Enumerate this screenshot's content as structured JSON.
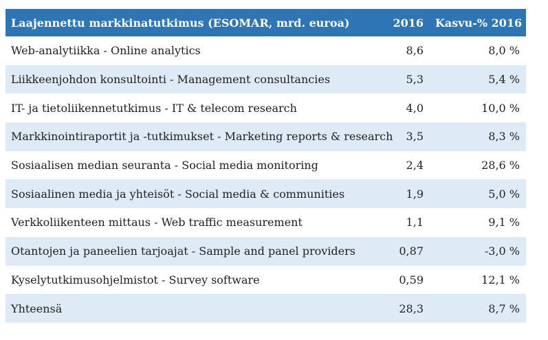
{
  "colors": {
    "header_bg": "#2E75B6",
    "header_text": "#FFFFFF",
    "row_alt_bg": "#DEEAF6",
    "row_bg": "#FFFFFF",
    "body_text": "#212121"
  },
  "chart_data": {
    "type": "table",
    "title": "Laajennettu markkinatutkimus (ESOMAR, mrd. euroa)",
    "columns": [
      "Laajennettu markkinatutkimus (ESOMAR, mrd. euroa)",
      "2016",
      "Kasvu-% 2016"
    ],
    "units": "mrd. euroa",
    "rows": [
      {
        "label": "Web-analytiikka - Online analytics",
        "value_2016": "8,6",
        "growth_2016": "8,0 %",
        "value_num": 8.6,
        "growth_num": 8.0
      },
      {
        "label": "Liikkeenjohdon konsultointi - Management consultancies",
        "value_2016": "5,3",
        "growth_2016": "5,4 %",
        "value_num": 5.3,
        "growth_num": 5.4
      },
      {
        "label": "IT- ja tietoliikennetutkimus - IT & telecom research",
        "value_2016": "4,0",
        "growth_2016": "10,0 %",
        "value_num": 4.0,
        "growth_num": 10.0
      },
      {
        "label": "Markkinointiraportit ja -tutkimukset - Marketing reports & research",
        "value_2016": "3,5",
        "growth_2016": "8,3 %",
        "value_num": 3.5,
        "growth_num": 8.3
      },
      {
        "label": "Sosiaalisen median seuranta - Social media monitoring",
        "value_2016": "2,4",
        "growth_2016": "28,6 %",
        "value_num": 2.4,
        "growth_num": 28.6
      },
      {
        "label": "Sosiaalinen media ja yhteisöt - Social media & communities",
        "value_2016": "1,9",
        "growth_2016": "5,0 %",
        "value_num": 1.9,
        "growth_num": 5.0
      },
      {
        "label": "Verkkoliikenteen mittaus - Web traffic measurement",
        "value_2016": "1,1",
        "growth_2016": "9,1 %",
        "value_num": 1.1,
        "growth_num": 9.1
      },
      {
        "label": "Otantojen ja paneelien tarjoajat - Sample and panel providers",
        "value_2016": "0,87",
        "growth_2016": "-3,0 %",
        "value_num": 0.87,
        "growth_num": -3.0
      },
      {
        "label": "Kyselytutkimusohjelmistot - Survey software",
        "value_2016": "0,59",
        "growth_2016": "12,1 %",
        "value_num": 0.59,
        "growth_num": 12.1
      },
      {
        "label": "Yhteensä",
        "value_2016": "28,3",
        "growth_2016": "8,7 %",
        "value_num": 28.3,
        "growth_num": 8.7
      }
    ]
  }
}
